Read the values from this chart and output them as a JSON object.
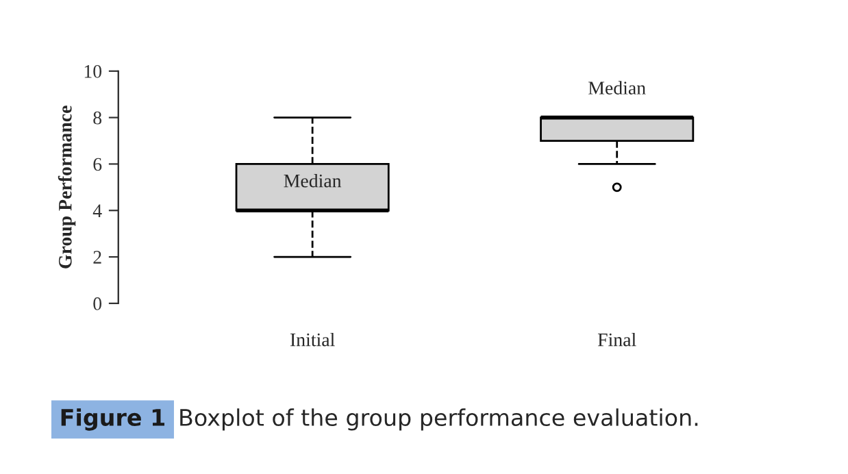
{
  "chart_data": {
    "type": "box",
    "ylabel": "Group Performance",
    "categories": [
      "Initial",
      "Final"
    ],
    "boxes": [
      {
        "low": 2,
        "q1": 4,
        "median": 4,
        "q3": 6,
        "high": 8
      },
      {
        "low": 6,
        "q1": 7,
        "median": 8,
        "q3": 8,
        "high": 8,
        "outliers": [
          5
        ]
      }
    ],
    "color": "#d3d3d3",
    "ylim": [
      0,
      10
    ],
    "yticks": [
      0,
      2,
      4,
      6,
      8,
      10
    ],
    "annotations": [
      "Median",
      "Median",
      "Figure 1",
      "Boxplot of the group performance evaluation."
    ]
  }
}
